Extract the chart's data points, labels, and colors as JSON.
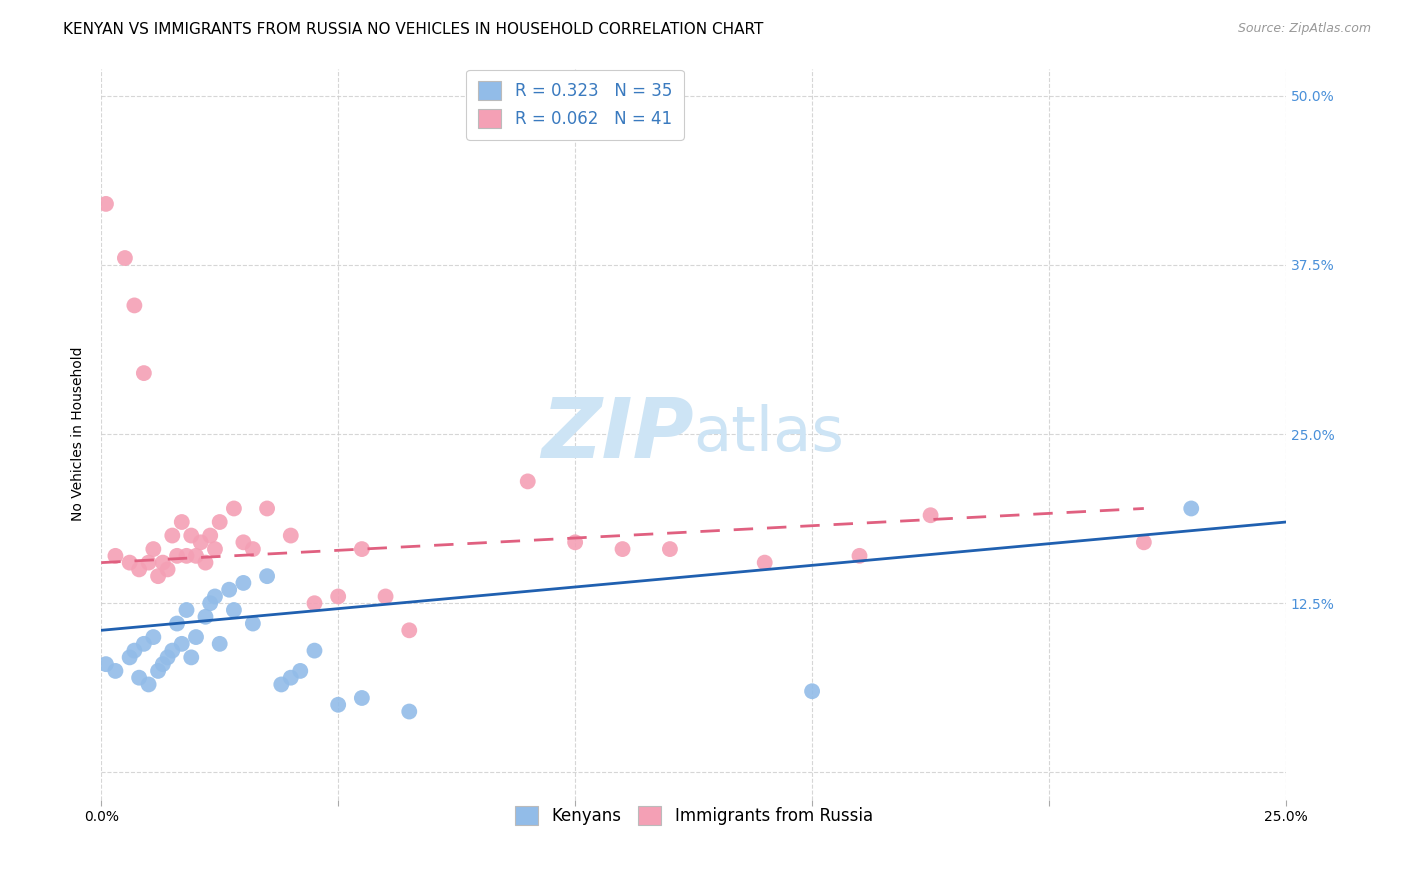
{
  "title": "KENYAN VS IMMIGRANTS FROM RUSSIA NO VEHICLES IN HOUSEHOLD CORRELATION CHART",
  "source": "Source: ZipAtlas.com",
  "ylabel": "No Vehicles in Household",
  "xmin": 0.0,
  "xmax": 0.25,
  "ymin": -0.02,
  "ymax": 0.52,
  "yticks": [
    0.0,
    0.125,
    0.25,
    0.375,
    0.5
  ],
  "ytick_labels": [
    "",
    "12.5%",
    "25.0%",
    "37.5%",
    "50.0%"
  ],
  "xticks": [
    0.0,
    0.05,
    0.1,
    0.15,
    0.2,
    0.25
  ],
  "xtick_labels": [
    "0.0%",
    "",
    "",
    "",
    "",
    "25.0%"
  ],
  "legend_r_kenyan": "R = 0.323",
  "legend_n_kenyan": "N = 35",
  "legend_r_russia": "R = 0.062",
  "legend_n_russia": "N = 41",
  "kenyan_color": "#92bce8",
  "russia_color": "#f4a0b5",
  "kenyan_line_color": "#2060b0",
  "russia_line_color": "#e06080",
  "watermark_color": "#cde4f5",
  "title_fontsize": 11,
  "axis_label_fontsize": 10,
  "tick_fontsize": 10,
  "legend_fontsize": 12,
  "watermark_fontsize": 60,
  "source_fontsize": 9,
  "kenyan_x": [
    0.001,
    0.003,
    0.006,
    0.007,
    0.008,
    0.009,
    0.01,
    0.011,
    0.012,
    0.013,
    0.014,
    0.015,
    0.016,
    0.017,
    0.018,
    0.019,
    0.02,
    0.022,
    0.023,
    0.024,
    0.025,
    0.027,
    0.028,
    0.03,
    0.032,
    0.035,
    0.038,
    0.04,
    0.042,
    0.045,
    0.05,
    0.055,
    0.065,
    0.15,
    0.23
  ],
  "kenyan_y": [
    0.08,
    0.075,
    0.085,
    0.09,
    0.07,
    0.095,
    0.065,
    0.1,
    0.075,
    0.08,
    0.085,
    0.09,
    0.11,
    0.095,
    0.12,
    0.085,
    0.1,
    0.115,
    0.125,
    0.13,
    0.095,
    0.135,
    0.12,
    0.14,
    0.11,
    0.145,
    0.065,
    0.07,
    0.075,
    0.09,
    0.05,
    0.055,
    0.045,
    0.06,
    0.195
  ],
  "russia_x": [
    0.001,
    0.003,
    0.005,
    0.006,
    0.007,
    0.008,
    0.009,
    0.01,
    0.011,
    0.012,
    0.013,
    0.014,
    0.015,
    0.016,
    0.017,
    0.018,
    0.019,
    0.02,
    0.021,
    0.022,
    0.023,
    0.024,
    0.025,
    0.028,
    0.03,
    0.032,
    0.035,
    0.04,
    0.045,
    0.05,
    0.055,
    0.06,
    0.065,
    0.09,
    0.1,
    0.11,
    0.12,
    0.14,
    0.16,
    0.175,
    0.22
  ],
  "russia_y": [
    0.42,
    0.16,
    0.38,
    0.155,
    0.345,
    0.15,
    0.295,
    0.155,
    0.165,
    0.145,
    0.155,
    0.15,
    0.175,
    0.16,
    0.185,
    0.16,
    0.175,
    0.16,
    0.17,
    0.155,
    0.175,
    0.165,
    0.185,
    0.195,
    0.17,
    0.165,
    0.195,
    0.175,
    0.125,
    0.13,
    0.165,
    0.13,
    0.105,
    0.215,
    0.17,
    0.165,
    0.165,
    0.155,
    0.16,
    0.19,
    0.17
  ],
  "kenyan_line_x": [
    0.0,
    0.25
  ],
  "kenyan_line_y": [
    0.105,
    0.185
  ],
  "russia_line_x": [
    0.0,
    0.22
  ],
  "russia_line_y": [
    0.155,
    0.195
  ]
}
